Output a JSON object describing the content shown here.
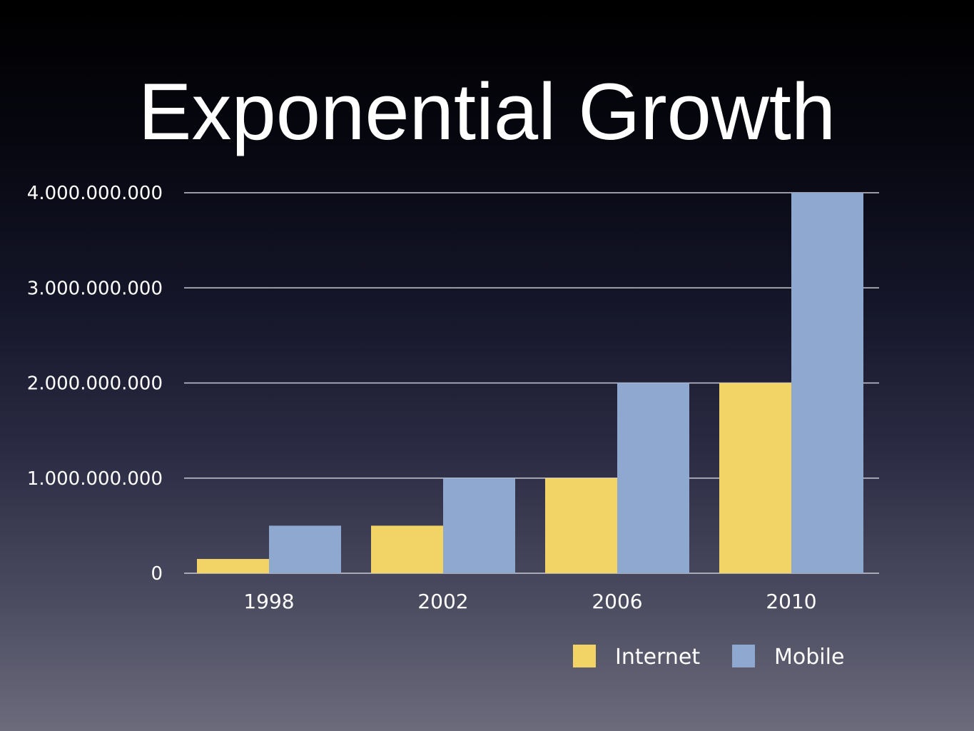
{
  "title": "Exponential Growth",
  "colors": {
    "internet": "#f2d366",
    "mobile": "#8ea8d0",
    "grid": "#c9c9d4",
    "text": "#ffffff"
  },
  "chart_data": {
    "type": "bar",
    "title": "",
    "xlabel": "",
    "ylabel": "",
    "categories": [
      "1998",
      "2002",
      "2006",
      "2010"
    ],
    "series": [
      {
        "name": "Internet",
        "values": [
          150000000,
          500000000,
          1000000000,
          2000000000
        ]
      },
      {
        "name": "Mobile",
        "values": [
          500000000,
          1000000000,
          2000000000,
          4000000000
        ]
      }
    ],
    "ylim": [
      0,
      4000000000
    ],
    "yticks": [
      0,
      1000000000,
      2000000000,
      3000000000,
      4000000000
    ],
    "ytick_labels": [
      "0",
      "1.000.000.000",
      "2.000.000.000",
      "3.000.000.000",
      "4.000.000.000"
    ],
    "grid": true,
    "legend": {
      "position": "bottom-right",
      "entries": [
        "Internet",
        "Mobile"
      ]
    }
  }
}
